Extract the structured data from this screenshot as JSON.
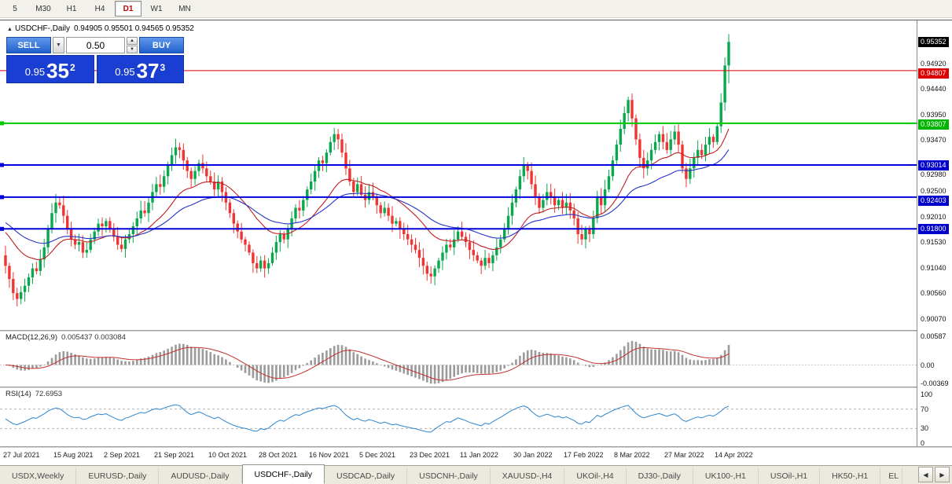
{
  "toolbar": {
    "timeframes": [
      {
        "label": "5",
        "active": false
      },
      {
        "label": "M30",
        "active": false
      },
      {
        "label": "H1",
        "active": false
      },
      {
        "label": "H4",
        "active": false
      },
      {
        "label": "D1",
        "active": true
      },
      {
        "label": "W1",
        "active": false
      },
      {
        "label": "MN",
        "active": false
      }
    ]
  },
  "chart": {
    "symbol": "USDCHF-,Daily",
    "ohlc_text": "0.94905 0.95501 0.94565 0.95352",
    "shift_marker": "▲"
  },
  "trade_panel": {
    "sell_label": "SELL",
    "buy_label": "BUY",
    "volume": "0.50",
    "dropdown_icon": "▼",
    "step_up_icon": "▲",
    "step_down_icon": "▼",
    "sell_price_prefix": "0.95",
    "sell_price_big": "35",
    "sell_price_sup": "2",
    "buy_price_prefix": "0.95",
    "buy_price_big": "37",
    "buy_price_sup": "3"
  },
  "chart_data": {
    "type": "candlestick",
    "symbol": "USDCHF-,Daily",
    "ylim": [
      0.8988,
      0.9576
    ],
    "first_open": 0.913,
    "colors": {
      "up": "#0aa84e",
      "down": "#ee3532"
    },
    "closes": [
      0.911,
      0.9085,
      0.9058,
      0.9047,
      0.906,
      0.9072,
      0.9088,
      0.9105,
      0.91,
      0.9122,
      0.9145,
      0.918,
      0.921,
      0.923,
      0.9225,
      0.9205,
      0.918,
      0.916,
      0.915,
      0.9155,
      0.9135,
      0.914,
      0.916,
      0.9175,
      0.919,
      0.9185,
      0.9195,
      0.918,
      0.9165,
      0.915,
      0.9142,
      0.916,
      0.917,
      0.9185,
      0.92,
      0.9215,
      0.921,
      0.923,
      0.925,
      0.9265,
      0.926,
      0.928,
      0.93,
      0.932,
      0.9335,
      0.933,
      0.931,
      0.929,
      0.9275,
      0.929,
      0.9305,
      0.9295,
      0.928,
      0.927,
      0.9255,
      0.927,
      0.925,
      0.923,
      0.921,
      0.919,
      0.9175,
      0.916,
      0.915,
      0.9135,
      0.9115,
      0.9105,
      0.912,
      0.9105,
      0.9115,
      0.9135,
      0.9155,
      0.917,
      0.916,
      0.918,
      0.92,
      0.922,
      0.9215,
      0.9235,
      0.9255,
      0.927,
      0.929,
      0.931,
      0.9305,
      0.9325,
      0.9345,
      0.936,
      0.935,
      0.9325,
      0.9295,
      0.927,
      0.925,
      0.9265,
      0.9245,
      0.9235,
      0.925,
      0.924,
      0.9225,
      0.921,
      0.922,
      0.9205,
      0.919,
      0.9195,
      0.918,
      0.917,
      0.916,
      0.915,
      0.914,
      0.9125,
      0.911,
      0.9095,
      0.909,
      0.9105,
      0.912,
      0.9135,
      0.915,
      0.9145,
      0.916,
      0.9175,
      0.9165,
      0.9155,
      0.914,
      0.913,
      0.912,
      0.911,
      0.9125,
      0.9115,
      0.913,
      0.9145,
      0.916,
      0.918,
      0.9205,
      0.923,
      0.9255,
      0.928,
      0.93,
      0.929,
      0.9265,
      0.924,
      0.922,
      0.9235,
      0.925,
      0.924,
      0.9225,
      0.9235,
      0.922,
      0.923,
      0.9215,
      0.92,
      0.917,
      0.916,
      0.918,
      0.917,
      0.92,
      0.924,
      0.9225,
      0.9255,
      0.928,
      0.931,
      0.934,
      0.937,
      0.94,
      0.9425,
      0.939,
      0.935,
      0.9315,
      0.9295,
      0.931,
      0.933,
      0.9345,
      0.936,
      0.9345,
      0.933,
      0.935,
      0.9365,
      0.934,
      0.9295,
      0.9275,
      0.9295,
      0.9315,
      0.933,
      0.932,
      0.934,
      0.9355,
      0.9345,
      0.9375,
      0.942,
      0.94905,
      0.95352
    ],
    "last_candle": {
      "open": 0.94905,
      "high": 0.95501,
      "low": 0.94565,
      "close": 0.95352
    },
    "current_price": 0.95352,
    "y_ticks": [
      0.9492,
      0.9444,
      0.9395,
      0.9347,
      0.9298,
      0.925,
      0.9201,
      0.9153,
      0.9104,
      0.9056,
      0.9007
    ],
    "h_lines": [
      {
        "price": 0.94807,
        "color": "#dd0000",
        "width": 1,
        "label_bg": "#dd0000"
      },
      {
        "price": 0.93807,
        "color": "#00ca00",
        "width": 2,
        "label_bg": "#00b400"
      },
      {
        "price": 0.93014,
        "color": "#0000dd",
        "width": 2,
        "label_bg": "#0000cc"
      },
      {
        "price": 0.92403,
        "color": "#0000dd",
        "width": 2,
        "label_bg": "#0000cc"
      },
      {
        "price": 0.918,
        "color": "#0000dd",
        "width": 2,
        "label_bg": "#0000cc"
      }
    ],
    "moving_averages": [
      {
        "name": "ma-red-line",
        "period": 20,
        "seed": 0.918,
        "color": "#c02020"
      },
      {
        "name": "ma-blue-line",
        "period": 40,
        "seed": 0.9196,
        "color": "#2633c8"
      }
    ],
    "x_labels": [
      "27 Jul 2021",
      "15 Aug 2021",
      "2 Sep 2021",
      "21 Sep 2021",
      "10 Oct 2021",
      "28 Oct 2021",
      "16 Nov 2021",
      "5 Dec 2021",
      "23 Dec 2021",
      "11 Jan 2022",
      "30 Jan 2022",
      "17 Feb 2022",
      "8 Mar 2022",
      "27 Mar 2022",
      "14 Apr 2022"
    ]
  },
  "macd": {
    "title": "MACD(12,26,9)",
    "values": "0.005437 0.003084",
    "ticks": [
      {
        "label": "0.00587",
        "value": 0.00587
      },
      {
        "label": "0.00",
        "value": 0
      },
      {
        "label": "-0.00369",
        "value": -0.00369
      }
    ],
    "range": [
      0.0068,
      -0.0044
    ]
  },
  "rsi": {
    "title": "RSI(14)",
    "value": "72.6953",
    "ticks": [
      {
        "label": "100",
        "value": 100
      },
      {
        "label": "70",
        "value": 70
      },
      {
        "label": "30",
        "value": 30
      },
      {
        "label": "0",
        "value": 0
      }
    ],
    "levels": [
      70,
      30
    ]
  },
  "tabs": {
    "items": [
      {
        "label": "USDX,Weekly",
        "active": false
      },
      {
        "label": "EURUSD-,Daily",
        "active": false
      },
      {
        "label": "AUDUSD-,Daily",
        "active": false
      },
      {
        "label": "USDCHF-,Daily",
        "active": true
      },
      {
        "label": "USDCAD-,Daily",
        "active": false
      },
      {
        "label": "USDCNH-,Daily",
        "active": false
      },
      {
        "label": "XAUUSD-,H4",
        "active": false
      },
      {
        "label": "UKOil-,H4",
        "active": false
      },
      {
        "label": "DJ30-,Daily",
        "active": false
      },
      {
        "label": "UK100-,H1",
        "active": false
      },
      {
        "label": "USOil-,H1",
        "active": false
      },
      {
        "label": "HK50-,H1",
        "active": false
      },
      {
        "label": "EL",
        "active": false,
        "partial": true
      }
    ],
    "scroll_left": "◀",
    "scroll_right": "▶"
  }
}
